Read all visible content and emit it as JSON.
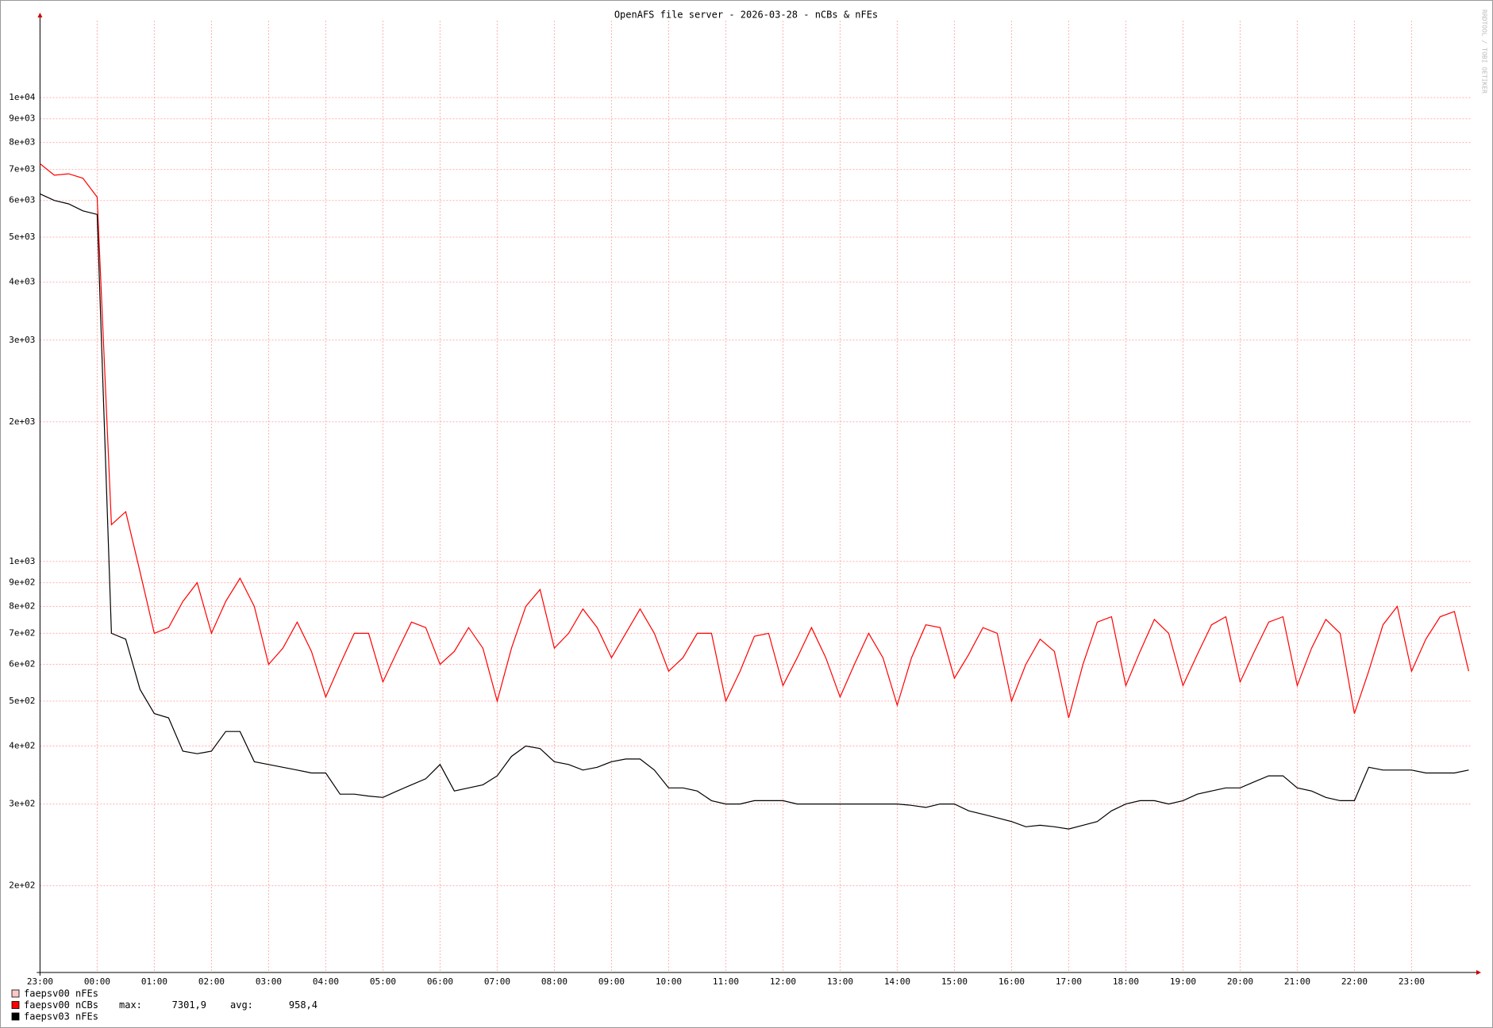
{
  "chart_data": {
    "type": "line",
    "title": "OpenAFS file server - 2026-03-28 - nCBs & nFEs",
    "watermark": "RRDTOOL / TOBI OETIKER",
    "log_y": true,
    "grid": true,
    "xlim": [
      0,
      25.05
    ],
    "xticks": [
      {
        "value": 0,
        "label": "23:00"
      },
      {
        "value": 1,
        "label": "00:00"
      },
      {
        "value": 2,
        "label": "01:00"
      },
      {
        "value": 3,
        "label": "02:00"
      },
      {
        "value": 4,
        "label": "03:00"
      },
      {
        "value": 5,
        "label": "04:00"
      },
      {
        "value": 6,
        "label": "05:00"
      },
      {
        "value": 7,
        "label": "06:00"
      },
      {
        "value": 8,
        "label": "07:00"
      },
      {
        "value": 9,
        "label": "08:00"
      },
      {
        "value": 10,
        "label": "09:00"
      },
      {
        "value": 11,
        "label": "10:00"
      },
      {
        "value": 12,
        "label": "11:00"
      },
      {
        "value": 13,
        "label": "12:00"
      },
      {
        "value": 14,
        "label": "13:00"
      },
      {
        "value": 15,
        "label": "14:00"
      },
      {
        "value": 16,
        "label": "15:00"
      },
      {
        "value": 17,
        "label": "16:00"
      },
      {
        "value": 18,
        "label": "17:00"
      },
      {
        "value": 19,
        "label": "18:00"
      },
      {
        "value": 20,
        "label": "19:00"
      },
      {
        "value": 21,
        "label": "20:00"
      },
      {
        "value": 22,
        "label": "21:00"
      },
      {
        "value": 23,
        "label": "22:00"
      },
      {
        "value": 24,
        "label": "23:00"
      }
    ],
    "ylim": [
      130,
      14650
    ],
    "yticks": [
      {
        "value": 200,
        "label": "2e+02"
      },
      {
        "value": 300,
        "label": "3e+02"
      },
      {
        "value": 400,
        "label": "4e+02"
      },
      {
        "value": 500,
        "label": "5e+02"
      },
      {
        "value": 600,
        "label": "6e+02"
      },
      {
        "value": 700,
        "label": "7e+02"
      },
      {
        "value": 800,
        "label": "8e+02"
      },
      {
        "value": 900,
        "label": "9e+02"
      },
      {
        "value": 1000,
        "label": "1e+03"
      },
      {
        "value": 2000,
        "label": "2e+03"
      },
      {
        "value": 3000,
        "label": "3e+03"
      },
      {
        "value": 4000,
        "label": "4e+03"
      },
      {
        "value": 5000,
        "label": "5e+03"
      },
      {
        "value": 6000,
        "label": "6e+03"
      },
      {
        "value": 7000,
        "label": "7e+03"
      },
      {
        "value": 8000,
        "label": "8e+03"
      },
      {
        "value": 9000,
        "label": "9e+03"
      },
      {
        "value": 10000,
        "label": "1e+04"
      }
    ],
    "x": [
      0,
      0.25,
      0.5,
      0.75,
      1,
      1.25,
      1.5,
      1.75,
      2,
      2.25,
      2.5,
      2.75,
      3,
      3.25,
      3.5,
      3.75,
      4,
      4.25,
      4.5,
      4.75,
      5,
      5.25,
      5.5,
      5.75,
      6,
      6.25,
      6.5,
      6.75,
      7,
      7.25,
      7.5,
      7.75,
      8,
      8.25,
      8.5,
      8.75,
      9,
      9.25,
      9.5,
      9.75,
      10,
      10.25,
      10.5,
      10.75,
      11,
      11.25,
      11.5,
      11.75,
      12,
      12.25,
      12.5,
      12.75,
      13,
      13.25,
      13.5,
      13.75,
      14,
      14.25,
      14.5,
      14.75,
      15,
      15.25,
      15.5,
      15.75,
      16,
      16.25,
      16.5,
      16.75,
      17,
      17.25,
      17.5,
      17.75,
      18,
      18.25,
      18.5,
      18.75,
      19,
      19.25,
      19.5,
      19.75,
      20,
      20.25,
      20.5,
      20.75,
      21,
      21.25,
      21.5,
      21.75,
      22,
      22.25,
      22.5,
      22.75,
      23,
      23.25,
      23.5,
      23.75,
      24,
      24.25,
      24.5,
      24.75,
      25
    ],
    "series": [
      {
        "name": "faepsv00 nFEs",
        "color": "#ffc8c8",
        "values": [
          null,
          null,
          null,
          null,
          null,
          null,
          null,
          null,
          null,
          null,
          null,
          null,
          null,
          null,
          null,
          null,
          null,
          null,
          null,
          null,
          null,
          null,
          null,
          null,
          null,
          null,
          null,
          null,
          null,
          null,
          null,
          null,
          null,
          null,
          null,
          null,
          null,
          null,
          null,
          null,
          null,
          null,
          null,
          null,
          null,
          null,
          null,
          null,
          null,
          null,
          null,
          null,
          null,
          null,
          null,
          null,
          null,
          null,
          null,
          null,
          null,
          null,
          null,
          null,
          null,
          null,
          null,
          null,
          null,
          null,
          null,
          null,
          null,
          null,
          null,
          null,
          null,
          null,
          null,
          null,
          null,
          null,
          null,
          null,
          null,
          null,
          null,
          null,
          null,
          null,
          null,
          null,
          null,
          null,
          null,
          null,
          null,
          null,
          null,
          null,
          null
        ]
      },
      {
        "name": "faepsv00 nCBs",
        "color": "#ff0000",
        "stats": [
          {
            "label": "max:",
            "value": "7301,9"
          },
          {
            "label": "avg:",
            "value": "958,4"
          }
        ],
        "values": [
          7200,
          6800,
          6850,
          6700,
          6100,
          1200,
          1280,
          950,
          700,
          720,
          820,
          900,
          700,
          820,
          920,
          800,
          600,
          650,
          740,
          640,
          510,
          600,
          700,
          700,
          550,
          640,
          740,
          720,
          600,
          640,
          720,
          650,
          500,
          650,
          800,
          870,
          650,
          700,
          790,
          720,
          620,
          700,
          790,
          700,
          580,
          620,
          700,
          700,
          500,
          580,
          690,
          700,
          540,
          620,
          720,
          620,
          510,
          600,
          700,
          620,
          490,
          620,
          730,
          720,
          560,
          630,
          720,
          700,
          500,
          600,
          680,
          640,
          460,
          600,
          740,
          760,
          540,
          640,
          750,
          700,
          540,
          630,
          730,
          760,
          550,
          640,
          740,
          760,
          540,
          650,
          750,
          700,
          470,
          580,
          730,
          800,
          580,
          680,
          760,
          780,
          580
        ]
      },
      {
        "name": "faepsv03 nFEs",
        "color": "#000000",
        "values": [
          6200,
          6000,
          5900,
          5700,
          5600,
          700,
          680,
          530,
          470,
          460,
          390,
          385,
          390,
          430,
          430,
          370,
          365,
          360,
          355,
          350,
          350,
          315,
          315,
          312,
          310,
          320,
          330,
          340,
          365,
          320,
          325,
          330,
          345,
          380,
          400,
          395,
          370,
          365,
          355,
          360,
          370,
          375,
          375,
          355,
          325,
          325,
          320,
          305,
          300,
          300,
          305,
          305,
          305,
          300,
          300,
          300,
          300,
          300,
          300,
          300,
          300,
          298,
          295,
          300,
          300,
          290,
          285,
          280,
          275,
          268,
          270,
          268,
          265,
          270,
          275,
          290,
          300,
          305,
          305,
          300,
          305,
          315,
          320,
          325,
          325,
          335,
          345,
          345,
          325,
          320,
          310,
          305,
          305,
          360,
          355,
          355,
          355,
          350,
          350,
          350,
          355
        ]
      }
    ]
  }
}
